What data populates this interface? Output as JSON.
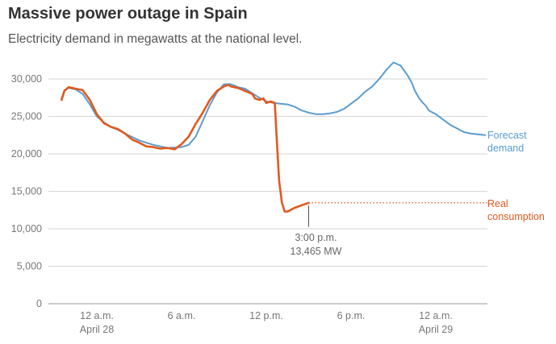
{
  "header": {
    "title": "Massive power outage in Spain",
    "subtitle": "Electricity demand in megawatts at the national level."
  },
  "chart_data": {
    "type": "line",
    "title": "Massive power outage in Spain",
    "subtitle": "Electricity demand in megawatts at the national level.",
    "xlabel": "",
    "ylabel": "",
    "x_unit": "hours from 12 a.m. April 28",
    "xlim": [
      -4,
      29
    ],
    "ylim": [
      0,
      30000
    ],
    "grid": true,
    "y_ticks": [
      {
        "value": 0,
        "label": "0"
      },
      {
        "value": 5000,
        "label": "5,000"
      },
      {
        "value": 10000,
        "label": "10,000"
      },
      {
        "value": 15000,
        "label": "15,000"
      },
      {
        "value": 20000,
        "label": "20,000"
      },
      {
        "value": 25000,
        "label": "25,000"
      },
      {
        "value": 30000,
        "label": "30,000"
      }
    ],
    "x_ticks": [
      {
        "value": 0,
        "label": "12 a.m.",
        "sublabel": "April 28"
      },
      {
        "value": 6,
        "label": "6 a.m.",
        "sublabel": ""
      },
      {
        "value": 12,
        "label": "12 p.m.",
        "sublabel": ""
      },
      {
        "value": 18,
        "label": "6 p.m.",
        "sublabel": ""
      },
      {
        "value": 24,
        "label": "12 a.m.",
        "sublabel": "April 29"
      }
    ],
    "series": [
      {
        "name": "Forecast demand",
        "color": "#5a9ccf",
        "x": [
          -2.5,
          -2.3,
          -2,
          -1.5,
          -1,
          -0.5,
          0,
          0.5,
          1,
          1.5,
          2,
          3,
          4,
          5,
          6,
          6.5,
          7,
          7.5,
          8,
          8.5,
          9,
          9.5,
          10,
          10.5,
          11,
          11.5,
          12,
          12.5,
          13,
          13.5,
          14,
          14.5,
          15,
          15.5,
          16,
          16.5,
          17,
          17.5,
          18,
          18.5,
          19,
          19.5,
          20,
          20.5,
          21,
          21.5,
          22,
          22.3,
          22.5,
          22.8,
          23,
          23.3,
          23.5,
          24,
          24.5,
          25,
          25.5,
          26,
          26.5,
          27,
          27.5
        ],
        "values": [
          27400,
          28500,
          28800,
          28600,
          28000,
          26600,
          25000,
          24200,
          23600,
          23200,
          22700,
          21800,
          21200,
          20800,
          20900,
          21200,
          22300,
          24400,
          26500,
          28200,
          29300,
          29300,
          28900,
          28700,
          28100,
          27500,
          27000,
          26800,
          26700,
          26600,
          26300,
          25800,
          25500,
          25300,
          25300,
          25400,
          25600,
          26000,
          26700,
          27400,
          28300,
          29000,
          30000,
          31200,
          32200,
          31800,
          30500,
          29500,
          28500,
          27500,
          27000,
          26400,
          25800,
          25300,
          24600,
          23900,
          23400,
          22900,
          22700,
          22600,
          22500
        ]
      },
      {
        "name": "Real consumption",
        "color": "#e05a1e",
        "x": [
          -2.5,
          -2.3,
          -2,
          -1.5,
          -1,
          -0.5,
          0,
          0.5,
          1,
          1.5,
          2,
          2.5,
          3,
          3.5,
          4,
          4.5,
          5,
          5.5,
          6,
          6.5,
          7,
          7.5,
          8,
          8.5,
          9,
          9.3,
          9.5,
          10,
          10.5,
          11,
          11.2,
          11.5,
          11.8,
          12,
          12.3,
          12.6,
          12.9,
          13.1,
          13.3,
          13.5,
          13.7,
          14,
          14.3,
          14.6,
          15
        ],
        "values": [
          27200,
          28400,
          28900,
          28700,
          28500,
          27200,
          25300,
          24100,
          23600,
          23300,
          22700,
          21900,
          21500,
          21000,
          20900,
          20700,
          20800,
          20600,
          21300,
          22300,
          24000,
          25500,
          27200,
          28400,
          29000,
          29200,
          29000,
          28800,
          28400,
          28000,
          27400,
          27200,
          27400,
          26800,
          27000,
          26800,
          16500,
          13500,
          12300,
          12300,
          12500,
          12800,
          13000,
          13200,
          13465
        ]
      }
    ],
    "annotations": [
      {
        "text": "Forecast",
        "text2": "demand",
        "series": "Forecast demand"
      },
      {
        "text": "Real",
        "text2": "consumption",
        "series": "Real consumption"
      },
      {
        "x": 15,
        "y": 13465,
        "text": "3:00 p.m.",
        "text2": "13,465 MW"
      }
    ]
  }
}
